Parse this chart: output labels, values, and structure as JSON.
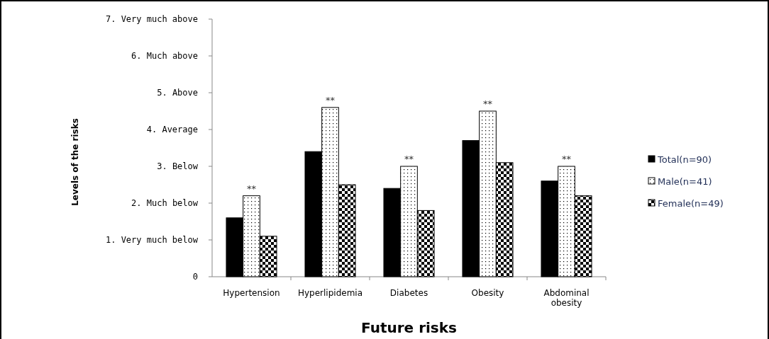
{
  "chart_data": {
    "type": "bar",
    "xlabel": "Future risks",
    "ylabel": "Levels of the risks",
    "categories": [
      "Hypertension",
      "Hyperlipidemia",
      "Diabetes",
      "Obesity",
      "Abdominal obesity"
    ],
    "series": [
      {
        "name": "Total(n=90)",
        "color": "#000000",
        "values": [
          1.6,
          3.4,
          2.4,
          3.7,
          2.6
        ]
      },
      {
        "name": "Male(n=41)",
        "color": "#000000",
        "values": [
          2.2,
          4.6,
          3.0,
          4.5,
          3.0
        ]
      },
      {
        "name": "Female(n=49)",
        "color": "#000000",
        "values": [
          1.1,
          2.5,
          1.8,
          3.1,
          2.2
        ]
      }
    ],
    "ylim": [
      0,
      7
    ],
    "yticks": [
      0,
      {
        "value": 1,
        "label": "1. Very much below"
      },
      {
        "value": 2,
        "label": "2. Much below"
      },
      {
        "value": 3,
        "label": "3. Below"
      },
      {
        "value": 4,
        "label": "4. Average"
      },
      {
        "value": 5,
        "label": "5. Above"
      },
      {
        "value": 6,
        "label": "6. Much above"
      },
      {
        "value": 7,
        "label": "7. Very much above"
      }
    ],
    "annotations": [
      {
        "text": "**",
        "x": "Hypertension",
        "y": 2.2
      },
      {
        "text": "**",
        "x": "Hyperlipidemia",
        "y": 4.6
      },
      {
        "text": "**",
        "x": "Diabetes",
        "y": 3.0
      },
      {
        "text": "**",
        "x": "Obesity",
        "y": 4.5
      },
      {
        "text": "**",
        "x": "Abdominal obesity",
        "y": 3.0
      }
    ],
    "legend": "right",
    "grid": false
  }
}
